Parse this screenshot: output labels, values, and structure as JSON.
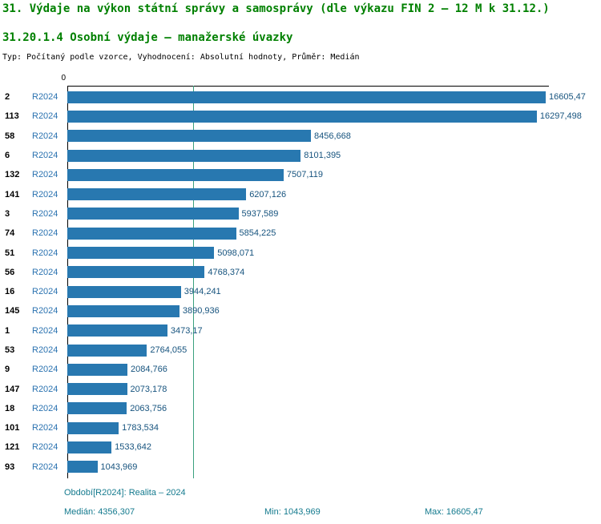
{
  "header": {
    "title": "31. Výdaje na výkon státní správy a samosprávy (dle výkazu FIN 2 – 12 M k 31.12.)",
    "subtitle": "31.20.1.4 Osobní výdaje – manažerské úvazky",
    "meta": "Typ: Počítaný podle vzorce, Vyhodnocení: Absolutní hodnoty, Průměr: Medián"
  },
  "axis": {
    "zero_label": "0"
  },
  "chart_data": {
    "type": "bar",
    "orientation": "horizontal",
    "series_label": "R2024",
    "categories": [
      "2",
      "113",
      "58",
      "6",
      "132",
      "141",
      "3",
      "74",
      "51",
      "56",
      "16",
      "145",
      "1",
      "53",
      "9",
      "147",
      "18",
      "101",
      "121",
      "93"
    ],
    "values": [
      16605.47,
      16297.498,
      8456.668,
      8101.395,
      7507.119,
      6207.126,
      5937.589,
      5854.225,
      5098.071,
      4768.374,
      3944.241,
      3890.936,
      3473.17,
      2764.055,
      2084.766,
      2073.178,
      2063.756,
      1783.534,
      1533.642,
      1043.969
    ],
    "value_labels": [
      "16605,47",
      "16297,498",
      "8456,668",
      "8101,395",
      "7507,119",
      "6207,126",
      "5937,589",
      "5854,225",
      "5098,071",
      "4768,374",
      "3944,241",
      "3890,936",
      "3473,17",
      "2764,055",
      "2084,766",
      "2073,178",
      "2063,756",
      "1783,534",
      "1533,642",
      "1043,969"
    ],
    "title": "31.20.1.4 Osobní výdaje – manažerské úvazky",
    "xlabel": "",
    "ylabel": "",
    "xlim": [
      0,
      16605.47
    ],
    "median": 4356.307,
    "min": 1043.969,
    "max": 16605.47,
    "legend_position": "none",
    "grid": false
  },
  "footer": {
    "period": "Období[R2024]: Realita – 2024",
    "median": "Medián: 4356,307",
    "min": "Min: 1043,969",
    "max": "Max: 16605,47"
  },
  "colors": {
    "title_green": "#008000",
    "bar": "#2878b0",
    "period_blue": "#2a72b0",
    "value_text": "#16537e",
    "footer_text": "#147a8e",
    "median_line": "#3aa17e"
  }
}
